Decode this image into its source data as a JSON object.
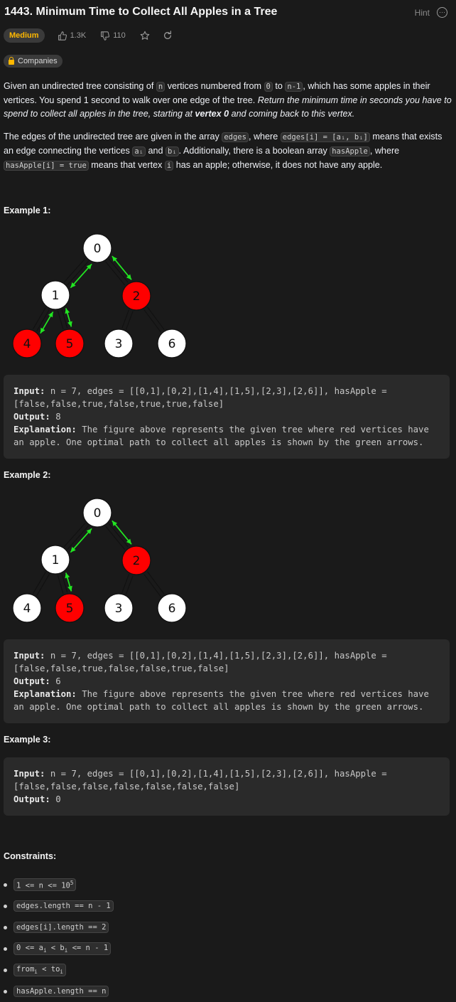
{
  "header": {
    "title": "1443. Minimum Time to Collect All Apples in a Tree",
    "hint_label": "Hint"
  },
  "tags": {
    "difficulty": "Medium",
    "likes": "1.3K",
    "dislikes": "110",
    "companies_label": "Companies"
  },
  "colors": {
    "accent_medium": "#ffb800",
    "apple_red": "#ff0000",
    "arrow_green": "#22e622"
  },
  "description": {
    "p1_a": "Given an undirected tree consisting of ",
    "p1_code1": "n",
    "p1_b": " vertices numbered from ",
    "p1_code2": "0",
    "p1_c": " to ",
    "p1_code3": "n-1",
    "p1_d": ", which has some apples in their vertices. You spend 1 second to walk over one edge of the tree. ",
    "p1_italic": "Return the minimum time in seconds you have to spend to collect all apples in the tree, starting at ",
    "p1_bold": "vertex 0",
    "p1_italic2": " and coming back to this vertex.",
    "p2_a": "The edges of the undirected tree are given in the array ",
    "p2_code1": "edges",
    "p2_b": ", where ",
    "p2_code2": "edges[i] = [aᵢ, bᵢ]",
    "p2_c": " means that exists an edge connecting the vertices ",
    "p2_code3": "aᵢ",
    "p2_d": " and ",
    "p2_code4": "bᵢ",
    "p2_e": ". Additionally, there is a boolean array ",
    "p2_code5": "hasApple",
    "p2_f": ", where ",
    "p2_code6": "hasApple[i] = true",
    "p2_g": " means that vertex ",
    "p2_code7": "i",
    "p2_h": " has an apple; otherwise, it does not have any apple."
  },
  "examples": [
    {
      "title": "Example 1:",
      "input_label": "Input:",
      "input": " n = 7, edges = [[0,1],[0,2],[1,4],[1,5],[2,3],[2,6]], hasApple = [false,false,true,false,true,true,false]",
      "output_label": "Output:",
      "output": " 8",
      "explanation_label": "Explanation:",
      "explanation": " The figure above represents the given tree where red vertices have an apple. One optimal path to collect all apples is shown by the green arrows.",
      "nodes": [
        "0",
        "1",
        "2",
        "4",
        "5",
        "3",
        "6"
      ],
      "red": [
        false,
        false,
        true,
        true,
        true,
        false,
        false
      ]
    },
    {
      "title": "Example 2:",
      "input_label": "Input:",
      "input": " n = 7, edges = [[0,1],[0,2],[1,4],[1,5],[2,3],[2,6]], hasApple = [false,false,true,false,false,true,false]",
      "output_label": "Output:",
      "output": " 6",
      "explanation_label": "Explanation:",
      "explanation": " The figure above represents the given tree where red vertices have an apple. One optimal path to collect all apples is shown by the green arrows.",
      "nodes": [
        "0",
        "1",
        "2",
        "4",
        "5",
        "3",
        "6"
      ],
      "red": [
        false,
        false,
        true,
        false,
        true,
        false,
        false
      ]
    },
    {
      "title": "Example 3:",
      "input_label": "Input:",
      "input": " n = 7, edges = [[0,1],[0,2],[1,4],[1,5],[2,3],[2,6]], hasApple = [false,false,false,false,false,false,false]",
      "output_label": "Output:",
      "output": " 0"
    }
  ],
  "constraints": {
    "title": "Constraints:",
    "c1_a": "1 <= n <= 10",
    "c1_sup": "5",
    "c2": "edges.length == n - 1",
    "c3": "edges[i].length == 2",
    "c4_a": "0 <= a",
    "c4_s1": "i",
    "c4_b": " < b",
    "c4_s2": "i",
    "c4_c": " <= n - 1",
    "c5_a": "from",
    "c5_s1": "i",
    "c5_b": " < to",
    "c5_s2": "i",
    "c6": "hasApple.length == n"
  }
}
